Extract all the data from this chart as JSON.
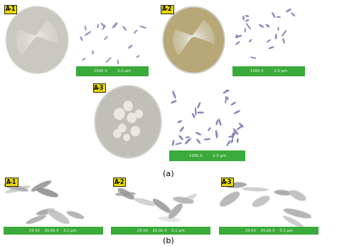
{
  "fig_width": 4.74,
  "fig_height": 3.45,
  "dpi": 100,
  "bg": "#ffffff",
  "yellow": "#e8d800",
  "green": "#3aaa3a",
  "white": "#ffffff",
  "black": "#000000",
  "dark_bg": "#111111",
  "colony_a1_bg": "#c8c8c0",
  "colony_a2_bg": "#b8a878",
  "colony_a3_bg": "#c0c0b8",
  "micro_a1_bg": "#eeeef5",
  "micro_a2_bg": "#eee8f8",
  "micro_a3_bg": "#eceef5",
  "sem_bg1": "#6a6a6a",
  "sem_bg2": "#606060",
  "sem_bg3": "#707070",
  "scalebar_a": "1000 X         2.0 μm",
  "scalebar_b": "20 kV    20.0k X    0.1 μm",
  "label_a": "(a)",
  "label_b": "(b)"
}
